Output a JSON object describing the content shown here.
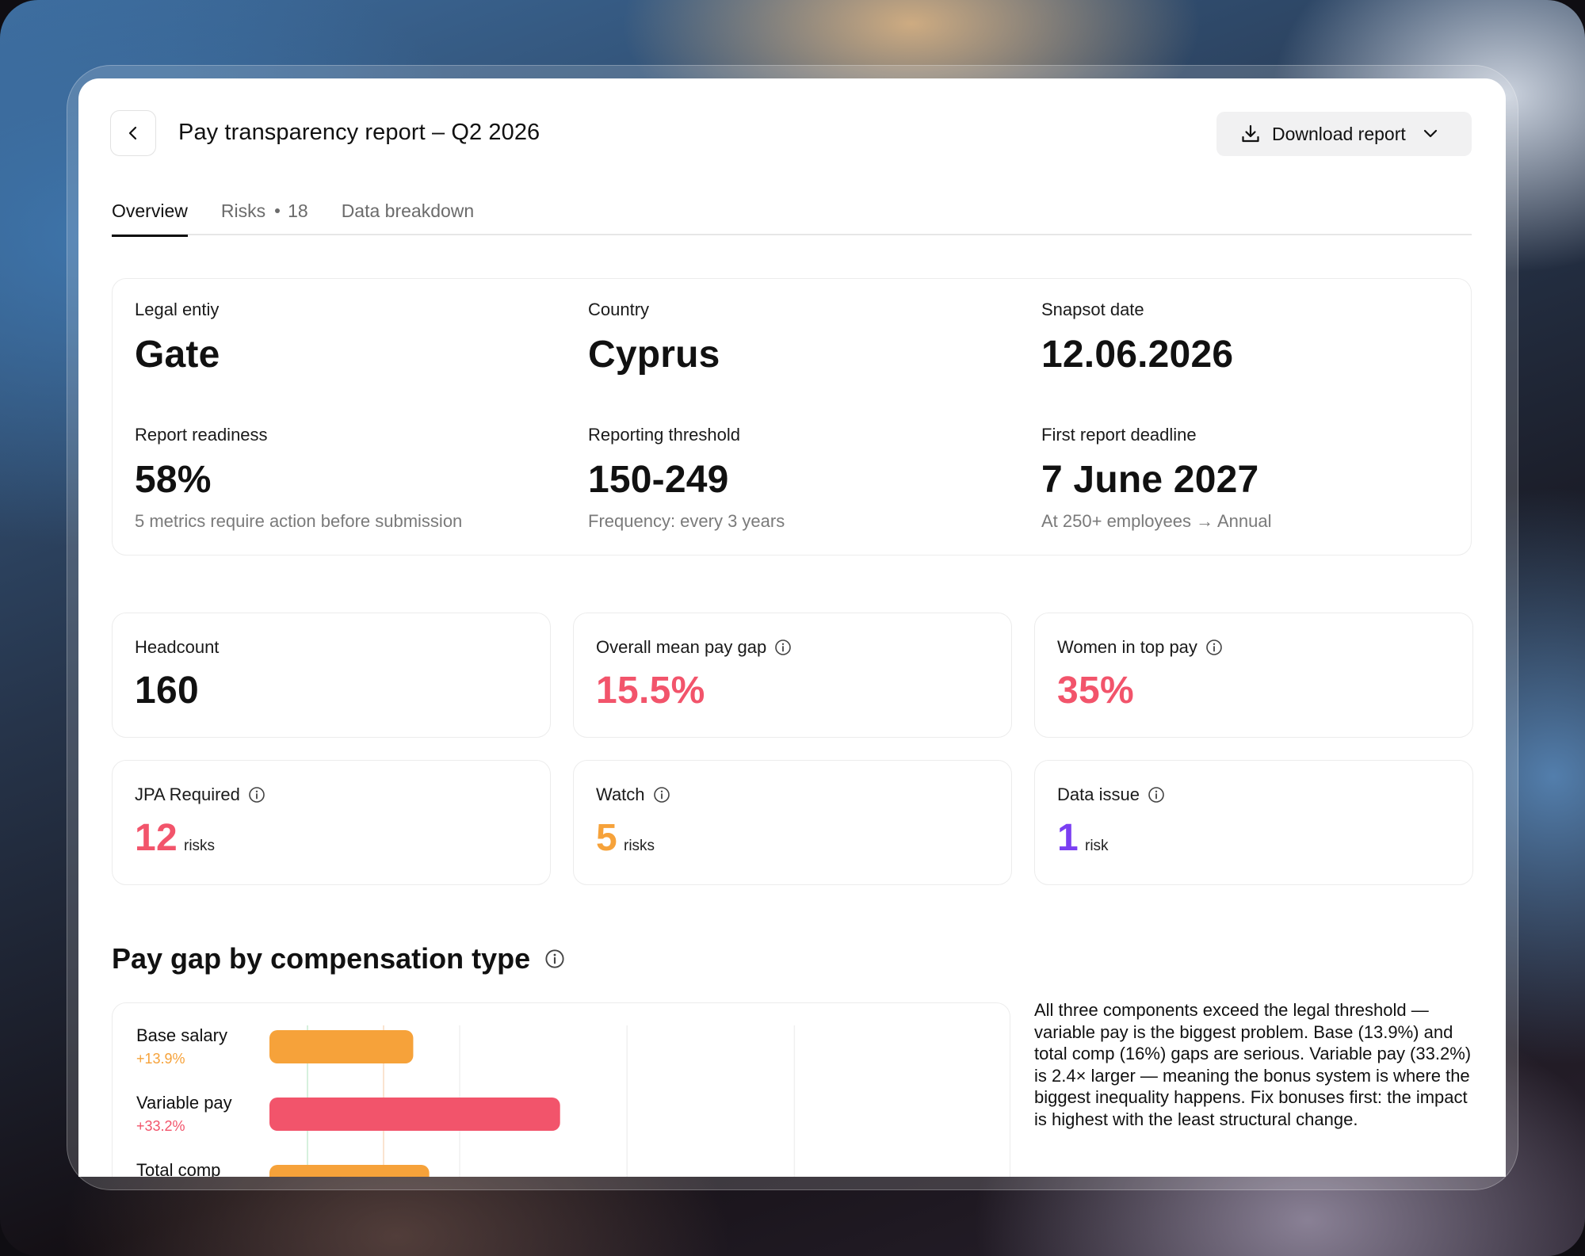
{
  "header": {
    "title": "Pay transparency report – Q2 2026",
    "download_label": "Download report"
  },
  "tabs": [
    {
      "label": "Overview"
    },
    {
      "label": "Risks",
      "count": "18"
    },
    {
      "label": "Data breakdown"
    }
  ],
  "info": {
    "legal_entity": {
      "label": "Legal entiy",
      "value": "Gate"
    },
    "country": {
      "label": "Country",
      "value": "Cyprus"
    },
    "snapshot": {
      "label": "Snapsot date",
      "value": "12.06.2026"
    },
    "readiness": {
      "label": "Report readiness",
      "value": "58%",
      "sub": "5 metrics require action before submission"
    },
    "threshold": {
      "label": "Reporting threshold",
      "value": "150-249",
      "sub": "Frequency: every 3 years"
    },
    "deadline": {
      "label": "First report deadline",
      "value": "7 June 2027",
      "sub": "At 250+ employees → Annual"
    }
  },
  "stats": {
    "headcount": {
      "label": "Headcount",
      "value": "160"
    },
    "mean_gap": {
      "label": "Overall mean pay gap",
      "value": "15.5%"
    },
    "women_top": {
      "label": "Women in top pay",
      "value": "35%"
    },
    "jpa": {
      "label": "JPA Required",
      "value": "12",
      "unit": "risks"
    },
    "watch": {
      "label": "Watch",
      "value": "5",
      "unit": "risks"
    },
    "data_issue": {
      "label": "Data issue",
      "value": "1",
      "unit": "risk"
    }
  },
  "colors": {
    "red": "#f2546b",
    "orange": "#f6a23a",
    "purple": "#7b3ff2"
  },
  "section": {
    "title": "Pay gap by compensation type"
  },
  "chart_data": {
    "type": "bar",
    "orientation": "horizontal",
    "categories": [
      "Base salary",
      "Variable pay",
      "Total comp"
    ],
    "values": [
      13.9,
      33.2,
      16.0
    ],
    "value_labels": [
      "+13.9%",
      "+33.2%",
      ""
    ],
    "colors": [
      "#f6a23a",
      "#f2546b",
      "#f6a23a"
    ],
    "xlim": [
      -5,
      90
    ],
    "reference_lines": [
      0,
      10
    ]
  },
  "summary": "All three components exceed the legal threshold — variable pay is the biggest problem. Base (13.9%) and total comp (16%) gaps are serious. Variable pay (33.2%) is 2.4× larger — meaning the bonus system is where the biggest inequality happens. Fix bonuses first: the impact is highest with the least structural change."
}
